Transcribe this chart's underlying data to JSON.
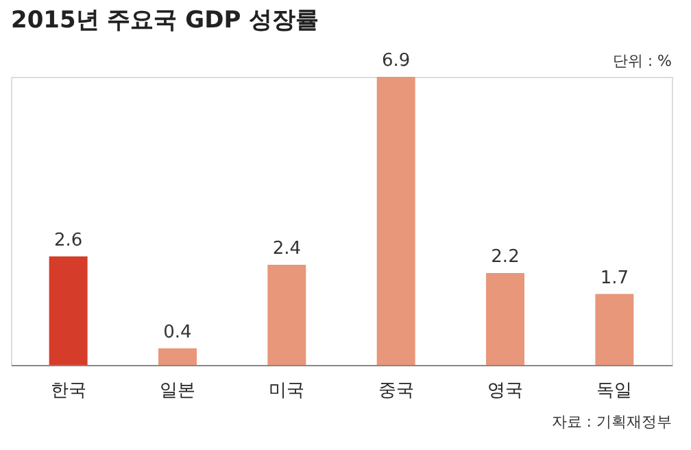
{
  "chart_data": {
    "type": "bar",
    "title": "2015년 주요국 GDP 성장률",
    "categories": [
      "한국",
      "일본",
      "미국",
      "중국",
      "영국",
      "독일"
    ],
    "values": [
      2.6,
      0.4,
      2.4,
      6.9,
      2.2,
      1.7
    ],
    "colors": [
      "#d63c2a",
      "#e8977a",
      "#e8977a",
      "#e8977a",
      "#e8977a",
      "#e8977a"
    ],
    "data_labels": true,
    "grid": false,
    "annotations": [
      "단위 : %",
      "자료 : 기획재정부"
    ]
  }
}
